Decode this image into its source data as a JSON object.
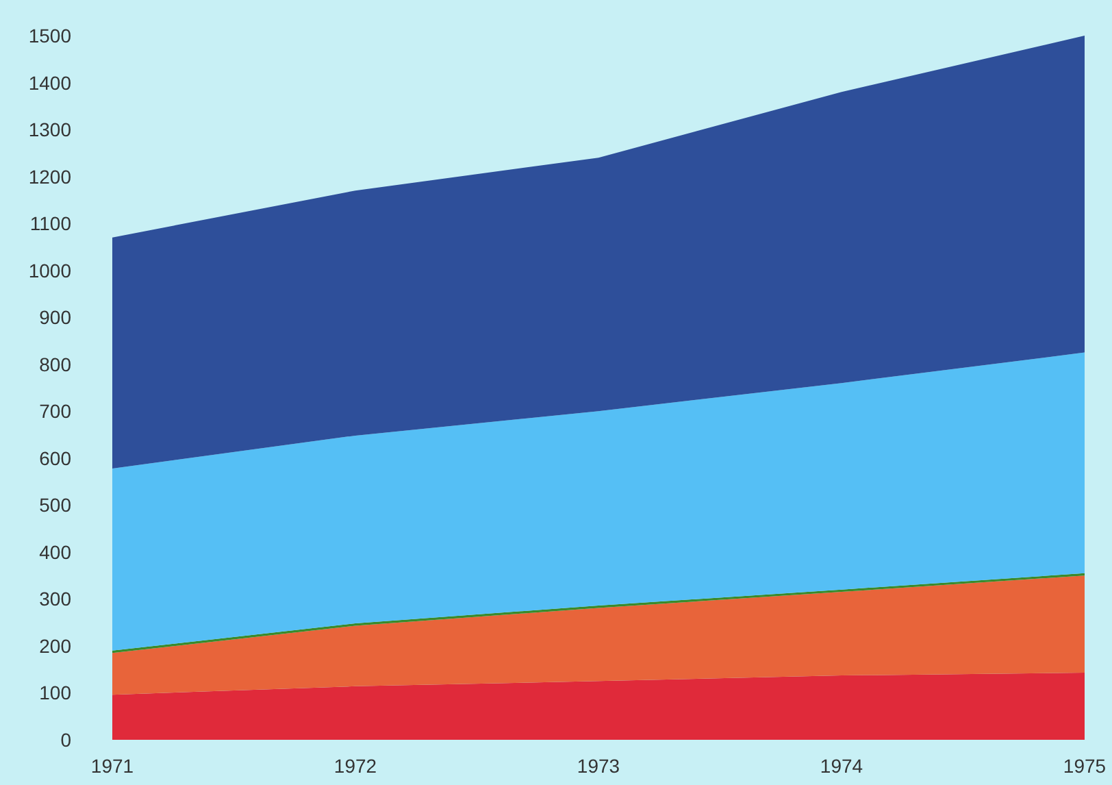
{
  "chart_data": {
    "type": "area",
    "stacked": true,
    "categories": [
      "1971",
      "1972",
      "1973",
      "1974",
      "1975"
    ],
    "series": [
      {
        "color": "#e02a3a",
        "values": [
          96,
          114,
          125,
          137,
          143
        ]
      },
      {
        "color": "#e8643a",
        "values": [
          89,
          129,
          156,
          178,
          207
        ]
      },
      {
        "color": "#3a8a2a",
        "values": [
          5,
          5,
          5,
          5,
          5
        ]
      },
      {
        "color": "#55bff5",
        "values": [
          388,
          400,
          414,
          440,
          470
        ]
      },
      {
        "color": "#2e4f9a",
        "values": [
          492,
          522,
          540,
          620,
          675
        ]
      }
    ],
    "ylim": [
      0,
      1500
    ],
    "yticks": [
      0,
      100,
      200,
      300,
      400,
      500,
      600,
      700,
      800,
      900,
      1000,
      1100,
      1200,
      1300,
      1400,
      1500
    ],
    "grid": false
  }
}
